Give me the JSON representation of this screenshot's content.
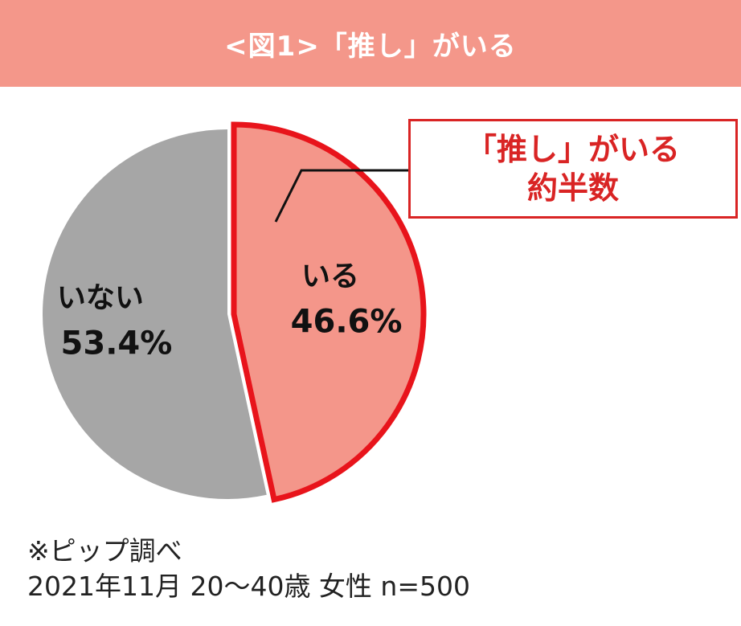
{
  "header": {
    "title": "<図1>「推し」がいる"
  },
  "colors": {
    "header_bg": "#f4978a",
    "yes_fill": "#f4968a",
    "yes_border": "#e8141b",
    "no_fill": "#a6a6a6",
    "callout_text": "#d92424"
  },
  "callout": {
    "line1": "「推し」がいる",
    "line2": "約半数"
  },
  "chart_data": {
    "type": "pie",
    "title": "<図1>「推し」がいる",
    "slices": [
      {
        "label": "いる",
        "value": 46.6,
        "value_label": "46.6%"
      },
      {
        "label": "いない",
        "value": 53.4,
        "value_label": "53.4%"
      }
    ],
    "highlighted": "いる"
  },
  "footer": {
    "line1": "※ピップ調べ",
    "line2": "2021年11月 20～40歳 女性 n=500"
  }
}
